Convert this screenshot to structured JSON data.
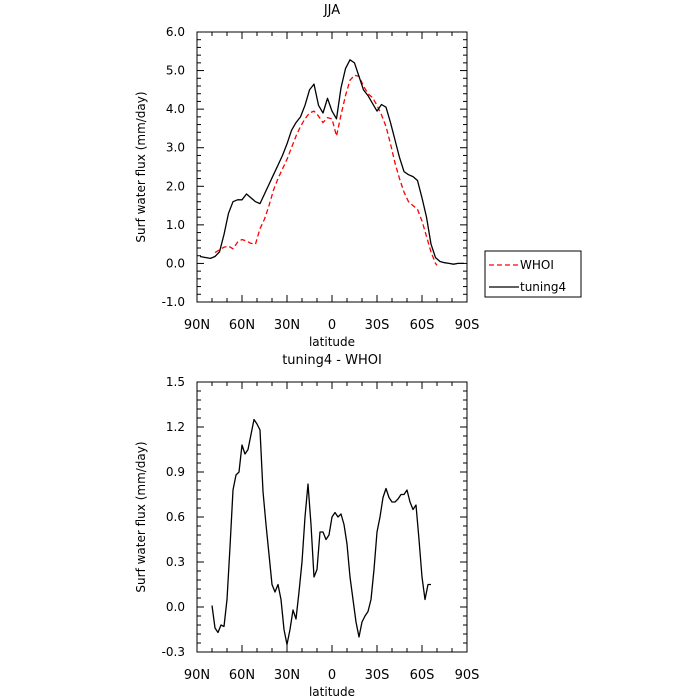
{
  "chart_data": [
    {
      "type": "line",
      "title": "JJA",
      "xlabel": "latitude",
      "ylabel": "Surf water flux (mm/day)",
      "xlim": [
        90,
        -90
      ],
      "ylim": [
        -1.0,
        6.0
      ],
      "x_ticks": [
        90,
        60,
        30,
        0,
        -30,
        -60,
        -90
      ],
      "x_tick_labels": [
        "90N",
        "60N",
        "30N",
        "0",
        "30S",
        "60S",
        "90S"
      ],
      "y_ticks": [
        -1.0,
        0.0,
        1.0,
        2.0,
        3.0,
        4.0,
        5.0,
        6.0
      ],
      "y_tick_labels": [
        "-1.0",
        "0.0",
        "1.0",
        "2.0",
        "3.0",
        "4.0",
        "5.0",
        "6.0"
      ],
      "legend_position": "right",
      "series": [
        {
          "name": "WHOI",
          "color": "#ff0000",
          "dash": true,
          "points": [
            [
              78,
              0.28
            ],
            [
              75,
              0.35
            ],
            [
              72,
              0.42
            ],
            [
              69,
              0.45
            ],
            [
              66,
              0.38
            ],
            [
              63,
              0.55
            ],
            [
              60,
              0.62
            ],
            [
              57,
              0.58
            ],
            [
              54,
              0.52
            ],
            [
              51,
              0.5
            ],
            [
              48,
              0.9
            ],
            [
              45,
              1.15
            ],
            [
              42,
              1.5
            ],
            [
              39,
              1.9
            ],
            [
              36,
              2.2
            ],
            [
              33,
              2.45
            ],
            [
              30,
              2.7
            ],
            [
              27,
              3.0
            ],
            [
              24,
              3.3
            ],
            [
              21,
              3.55
            ],
            [
              18,
              3.75
            ],
            [
              15,
              3.9
            ],
            [
              12,
              3.95
            ],
            [
              9,
              3.82
            ],
            [
              6,
              3.65
            ],
            [
              3,
              3.78
            ],
            [
              0,
              3.75
            ],
            [
              -3,
              3.3
            ],
            [
              -6,
              3.85
            ],
            [
              -9,
              4.35
            ],
            [
              -12,
              4.75
            ],
            [
              -15,
              4.88
            ],
            [
              -18,
              4.85
            ],
            [
              -21,
              4.6
            ],
            [
              -24,
              4.4
            ],
            [
              -27,
              4.3
            ],
            [
              -30,
              4.1
            ],
            [
              -33,
              3.85
            ],
            [
              -36,
              3.55
            ],
            [
              -39,
              3.1
            ],
            [
              -42,
              2.6
            ],
            [
              -45,
              2.2
            ],
            [
              -48,
              1.85
            ],
            [
              -51,
              1.6
            ],
            [
              -54,
              1.5
            ],
            [
              -57,
              1.4
            ],
            [
              -60,
              1.1
            ],
            [
              -63,
              0.7
            ],
            [
              -66,
              0.3
            ],
            [
              -69,
              0.0
            ],
            [
              -70,
              -0.05
            ]
          ]
        },
        {
          "name": "tuning4",
          "color": "#000000",
          "dash": false,
          "points": [
            [
              88,
              0.18
            ],
            [
              84,
              0.15
            ],
            [
              81,
              0.13
            ],
            [
              78,
              0.18
            ],
            [
              75,
              0.3
            ],
            [
              72,
              0.75
            ],
            [
              69,
              1.3
            ],
            [
              66,
              1.6
            ],
            [
              63,
              1.65
            ],
            [
              60,
              1.65
            ],
            [
              57,
              1.8
            ],
            [
              54,
              1.7
            ],
            [
              51,
              1.6
            ],
            [
              48,
              1.55
            ],
            [
              45,
              1.8
            ],
            [
              42,
              2.05
            ],
            [
              39,
              2.3
            ],
            [
              36,
              2.55
            ],
            [
              33,
              2.8
            ],
            [
              30,
              3.1
            ],
            [
              27,
              3.45
            ],
            [
              24,
              3.65
            ],
            [
              21,
              3.8
            ],
            [
              18,
              4.1
            ],
            [
              15,
              4.5
            ],
            [
              12,
              4.65
            ],
            [
              9,
              4.1
            ],
            [
              6,
              3.9
            ],
            [
              3,
              4.28
            ],
            [
              0,
              3.95
            ],
            [
              -3,
              3.75
            ],
            [
              -6,
              4.55
            ],
            [
              -9,
              5.05
            ],
            [
              -12,
              5.28
            ],
            [
              -15,
              5.2
            ],
            [
              -18,
              4.85
            ],
            [
              -21,
              4.5
            ],
            [
              -24,
              4.35
            ],
            [
              -27,
              4.15
            ],
            [
              -30,
              3.95
            ],
            [
              -33,
              4.12
            ],
            [
              -36,
              4.05
            ],
            [
              -39,
              3.65
            ],
            [
              -42,
              3.2
            ],
            [
              -45,
              2.75
            ],
            [
              -48,
              2.38
            ],
            [
              -51,
              2.3
            ],
            [
              -54,
              2.25
            ],
            [
              -57,
              2.15
            ],
            [
              -60,
              1.7
            ],
            [
              -63,
              1.2
            ],
            [
              -66,
              0.5
            ],
            [
              -69,
              0.15
            ],
            [
              -72,
              0.05
            ],
            [
              -75,
              0.02
            ],
            [
              -78,
              0.0
            ],
            [
              -81,
              -0.02
            ],
            [
              -84,
              0.0
            ],
            [
              -88,
              0.0
            ]
          ]
        }
      ]
    },
    {
      "type": "line",
      "title": "tuning4 - WHOI",
      "xlabel": "latitude",
      "ylabel": "Surf water flux (mm/day)",
      "xlim": [
        90,
        -90
      ],
      "ylim": [
        -0.3,
        1.5
      ],
      "x_ticks": [
        90,
        60,
        30,
        0,
        -30,
        -60,
        -90
      ],
      "x_tick_labels": [
        "90N",
        "60N",
        "30N",
        "0",
        "30S",
        "60S",
        "90S"
      ],
      "y_ticks": [
        -0.3,
        0.0,
        0.3,
        0.6,
        0.9,
        1.2,
        1.5
      ],
      "y_tick_labels": [
        "-0.3",
        "0.0",
        "0.3",
        "0.6",
        "0.9",
        "1.2",
        "1.5"
      ],
      "series": [
        {
          "name": "",
          "color": "#000000",
          "dash": false,
          "points": [
            [
              80,
              0.01
            ],
            [
              78,
              -0.14
            ],
            [
              76,
              -0.17
            ],
            [
              74,
              -0.12
            ],
            [
              72,
              -0.13
            ],
            [
              70,
              0.05
            ],
            [
              68,
              0.4
            ],
            [
              66,
              0.78
            ],
            [
              64,
              0.88
            ],
            [
              62,
              0.9
            ],
            [
              60,
              1.08
            ],
            [
              58,
              1.02
            ],
            [
              56,
              1.05
            ],
            [
              54,
              1.15
            ],
            [
              52,
              1.25
            ],
            [
              50,
              1.22
            ],
            [
              48,
              1.18
            ],
            [
              46,
              0.77
            ],
            [
              44,
              0.55
            ],
            [
              42,
              0.35
            ],
            [
              40,
              0.15
            ],
            [
              38,
              0.1
            ],
            [
              36,
              0.15
            ],
            [
              34,
              0.05
            ],
            [
              32,
              -0.15
            ],
            [
              30,
              -0.25
            ],
            [
              28,
              -0.15
            ],
            [
              26,
              -0.02
            ],
            [
              24,
              -0.08
            ],
            [
              22,
              0.1
            ],
            [
              20,
              0.3
            ],
            [
              18,
              0.6
            ],
            [
              16,
              0.82
            ],
            [
              14,
              0.55
            ],
            [
              12,
              0.2
            ],
            [
              10,
              0.25
            ],
            [
              8,
              0.5
            ],
            [
              6,
              0.5
            ],
            [
              4,
              0.45
            ],
            [
              2,
              0.48
            ],
            [
              0,
              0.6
            ],
            [
              -2,
              0.63
            ],
            [
              -4,
              0.6
            ],
            [
              -6,
              0.62
            ],
            [
              -8,
              0.55
            ],
            [
              -10,
              0.42
            ],
            [
              -12,
              0.2
            ],
            [
              -14,
              0.05
            ],
            [
              -16,
              -0.1
            ],
            [
              -18,
              -0.2
            ],
            [
              -20,
              -0.1
            ],
            [
              -22,
              -0.06
            ],
            [
              -24,
              -0.03
            ],
            [
              -26,
              0.05
            ],
            [
              -28,
              0.25
            ],
            [
              -30,
              0.5
            ],
            [
              -32,
              0.6
            ],
            [
              -34,
              0.73
            ],
            [
              -36,
              0.79
            ],
            [
              -38,
              0.73
            ],
            [
              -40,
              0.7
            ],
            [
              -42,
              0.7
            ],
            [
              -44,
              0.72
            ],
            [
              -46,
              0.75
            ],
            [
              -48,
              0.75
            ],
            [
              -50,
              0.78
            ],
            [
              -52,
              0.7
            ],
            [
              -54,
              0.65
            ],
            [
              -56,
              0.68
            ],
            [
              -58,
              0.45
            ],
            [
              -60,
              0.2
            ],
            [
              -62,
              0.05
            ],
            [
              -64,
              0.15
            ],
            [
              -66,
              0.15
            ]
          ]
        }
      ]
    }
  ]
}
